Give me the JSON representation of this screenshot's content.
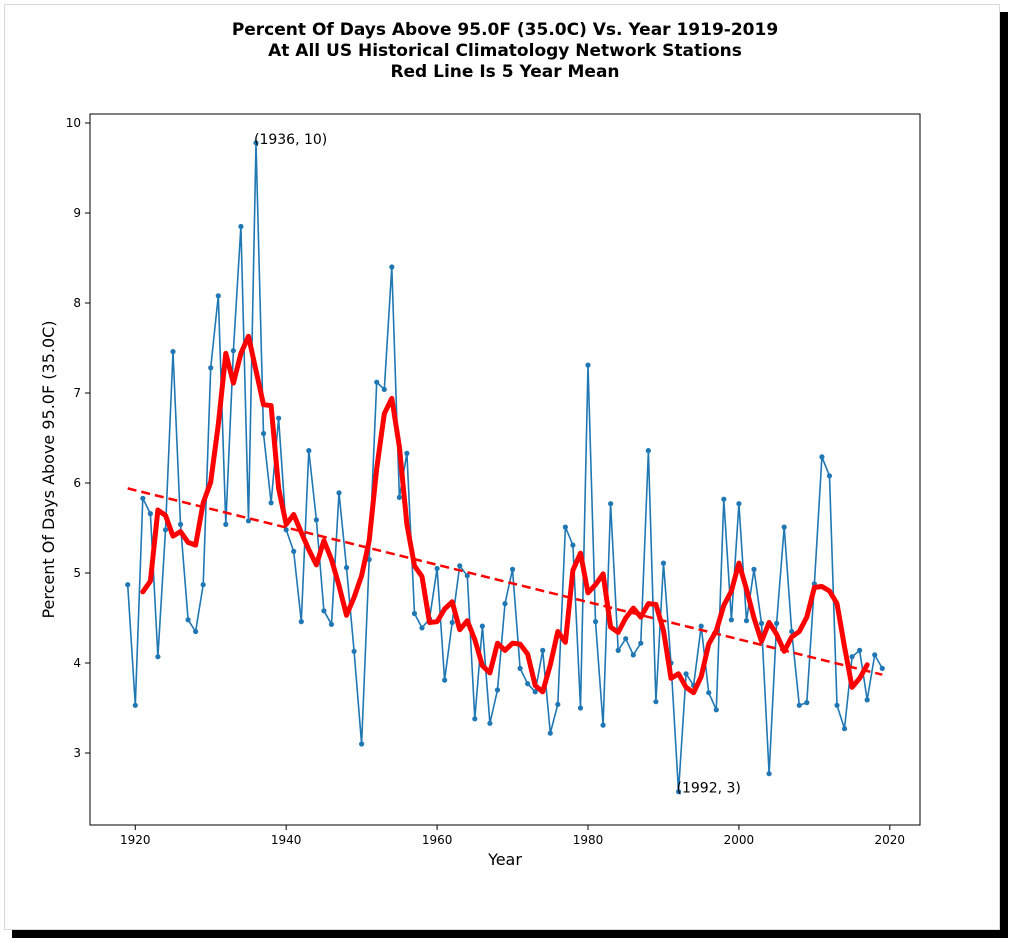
{
  "chart_data": {
    "type": "line",
    "title": [
      "Percent Of Days Above 95.0F (35.0C) Vs. Year 1919-2019",
      "At All US Historical Climatology Network Stations",
      "Red Line Is 5 Year Mean"
    ],
    "xlabel": "Year",
    "ylabel": "Percent Of Days Above 95.0F (35.0C)",
    "xlim": [
      1914,
      2024
    ],
    "ylim": [
      2.2,
      10.1
    ],
    "xticks": [
      1920,
      1940,
      1960,
      1980,
      2000,
      2020
    ],
    "yticks": [
      3,
      4,
      5,
      6,
      7,
      8,
      9,
      10
    ],
    "grid": false,
    "colors": {
      "annual": "#1f77b4",
      "mean": "#ff0000",
      "trend": "#ff0000"
    },
    "series": [
      {
        "style": "annual",
        "x": [
          1919,
          1920,
          1921,
          1922,
          1923,
          1924,
          1925,
          1926,
          1927,
          1928,
          1929,
          1930,
          1931,
          1932,
          1933,
          1934,
          1935,
          1936,
          1937,
          1938,
          1939,
          1940,
          1941,
          1942,
          1943,
          1944,
          1945,
          1946,
          1947,
          1948,
          1949,
          1950,
          1951,
          1952,
          1953,
          1954,
          1955,
          1956,
          1957,
          1958,
          1959,
          1960,
          1961,
          1962,
          1963,
          1964,
          1965,
          1966,
          1967,
          1968,
          1969,
          1970,
          1971,
          1972,
          1973,
          1974,
          1975,
          1976,
          1977,
          1978,
          1979,
          1980,
          1981,
          1982,
          1983,
          1984,
          1985,
          1986,
          1987,
          1988,
          1989,
          1990,
          1991,
          1992,
          1993,
          1994,
          1995,
          1996,
          1997,
          1998,
          1999,
          2000,
          2001,
          2002,
          2003,
          2004,
          2005,
          2006,
          2007,
          2008,
          2009,
          2010,
          2011,
          2012,
          2013,
          2014,
          2015,
          2016,
          2017,
          2018,
          2019
        ],
        "y": [
          4.87,
          3.53,
          5.83,
          5.66,
          4.07,
          5.48,
          7.46,
          5.54,
          4.48,
          4.35,
          4.87,
          7.28,
          8.08,
          5.54,
          7.47,
          8.85,
          5.58,
          9.78,
          6.55,
          5.78,
          6.72,
          5.48,
          5.24,
          4.46,
          6.36,
          5.59,
          4.58,
          4.43,
          5.89,
          5.06,
          4.13,
          3.1,
          5.15,
          7.12,
          7.04,
          8.4,
          5.84,
          6.33,
          4.55,
          4.39,
          4.49,
          5.05,
          3.81,
          4.45,
          5.08,
          4.97,
          3.38,
          4.41,
          3.33,
          3.7,
          4.66,
          5.04,
          3.94,
          3.77,
          3.68,
          4.14,
          3.22,
          3.54,
          5.51,
          5.31,
          3.5,
          7.31,
          4.46,
          3.31,
          5.77,
          4.14,
          4.27,
          4.09,
          4.22,
          6.36,
          3.57,
          5.11,
          4.0,
          2.57,
          3.88,
          3.75,
          4.41,
          3.67,
          3.48,
          5.82,
          4.48,
          5.77,
          4.47,
          5.04,
          4.44,
          2.77,
          4.44,
          5.51,
          4.35,
          3.53,
          3.56,
          4.88,
          6.29,
          6.08,
          3.53,
          3.27,
          4.07,
          4.14,
          3.59,
          4.09,
          3.94
        ]
      },
      {
        "style": "mean",
        "x": [
          1921,
          1922,
          1923,
          1924,
          1925,
          1926,
          1927,
          1928,
          1929,
          1930,
          1931,
          1932,
          1933,
          1934,
          1935,
          1936,
          1937,
          1938,
          1939,
          1940,
          1941,
          1942,
          1943,
          1944,
          1945,
          1946,
          1947,
          1948,
          1949,
          1950,
          1951,
          1952,
          1953,
          1954,
          1955,
          1956,
          1957,
          1958,
          1959,
          1960,
          1961,
          1962,
          1963,
          1964,
          1965,
          1966,
          1967,
          1968,
          1969,
          1970,
          1971,
          1972,
          1973,
          1974,
          1975,
          1976,
          1977,
          1978,
          1979,
          1980,
          1981,
          1982,
          1983,
          1984,
          1985,
          1986,
          1987,
          1988,
          1989,
          1990,
          1991,
          1992,
          1993,
          1994,
          1995,
          1996,
          1997,
          1998,
          1999,
          2000,
          2001,
          2002,
          2003,
          2004,
          2005,
          2006,
          2007,
          2008,
          2009,
          2010,
          2011,
          2012,
          2013,
          2014,
          2015,
          2016,
          2017
        ],
        "y": [
          4.79,
          4.91,
          5.7,
          5.64,
          5.41,
          5.46,
          5.34,
          5.31,
          5.78,
          6.01,
          6.65,
          7.44,
          7.11,
          7.44,
          7.63,
          7.25,
          6.87,
          6.86,
          5.94,
          5.54,
          5.65,
          5.45,
          5.26,
          5.09,
          5.36,
          5.15,
          4.86,
          4.53,
          4.73,
          4.97,
          5.36,
          6.16,
          6.77,
          6.94,
          6.4,
          5.54,
          5.08,
          4.96,
          4.45,
          4.46,
          4.6,
          4.68,
          4.37,
          4.47,
          4.26,
          3.97,
          3.89,
          4.22,
          4.14,
          4.22,
          4.21,
          4.1,
          3.75,
          3.68,
          3.98,
          4.35,
          4.23,
          5.03,
          5.22,
          4.78,
          4.87,
          4.99,
          4.4,
          4.34,
          4.5,
          4.61,
          4.51,
          4.66,
          4.65,
          4.36,
          3.83,
          3.88,
          3.73,
          3.67,
          3.85,
          4.21,
          4.36,
          4.64,
          4.8,
          5.11,
          4.82,
          4.5,
          4.24,
          4.45,
          4.32,
          4.13,
          4.29,
          4.35,
          4.51,
          4.84,
          4.85,
          4.8,
          4.66,
          4.18,
          3.73,
          3.83,
          3.98
        ]
      },
      {
        "style": "trend",
        "x": [
          1919,
          2019
        ],
        "y": [
          5.94,
          3.87
        ]
      }
    ],
    "annotations": [
      {
        "x": 1936,
        "y": 9.78,
        "text": "(1936, 10)"
      },
      {
        "x": 1992,
        "y": 2.57,
        "text": "(1992, 3)"
      }
    ]
  }
}
